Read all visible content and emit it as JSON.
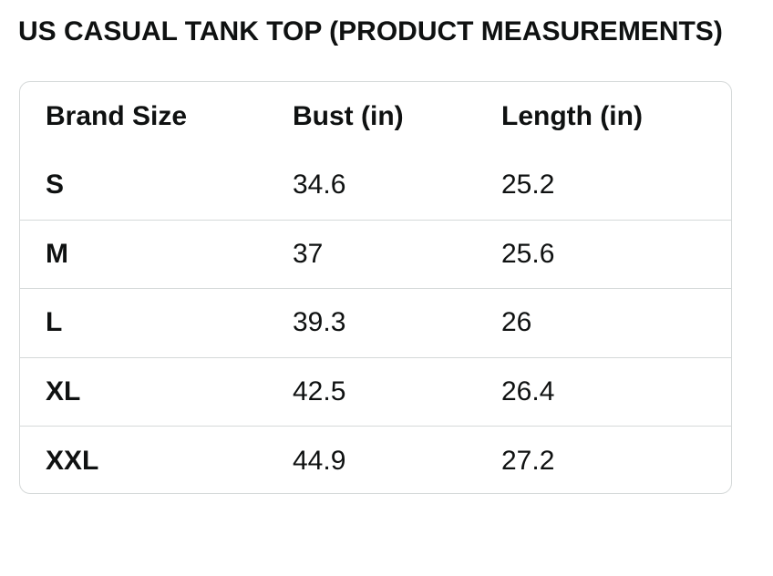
{
  "title": "US CASUAL TANK TOP (PRODUCT MEASUREMENTS)",
  "table": {
    "headers": [
      "Brand Size",
      "Bust (in)",
      "Length (in)"
    ],
    "rows": [
      [
        "S",
        "34.6",
        "25.2"
      ],
      [
        "M",
        "37",
        "25.6"
      ],
      [
        "L",
        "39.3",
        "26"
      ],
      [
        "XL",
        "42.5",
        "26.4"
      ],
      [
        "XXL",
        "44.9",
        "27.2"
      ]
    ]
  },
  "colors": {
    "text": "#0f1111",
    "border": "#d5d9d9",
    "background": "#ffffff"
  }
}
